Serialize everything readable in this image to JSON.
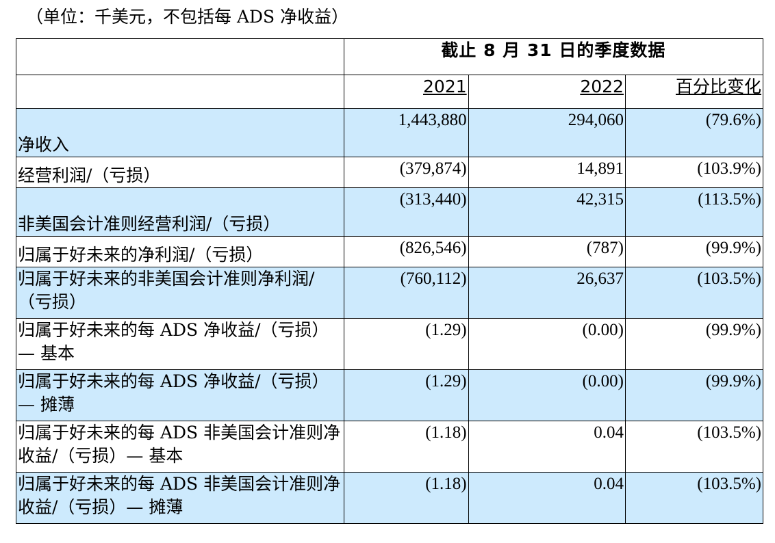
{
  "unit_note": "（单位：千美元，不包括每 ADS 净收益）",
  "header": {
    "period_title": "截止 8 月 31 日的季度数据",
    "col_2021": "2021",
    "col_2022": "2022",
    "col_pct": "百分比变化"
  },
  "rows": [
    {
      "label": "净收入",
      "v2021": "1,443,880",
      "v2022": "294,060",
      "pct": "(79.6%)"
    },
    {
      "label": "经营利润/（亏损）",
      "v2021": "(379,874)",
      "v2022": "14,891",
      "pct": "(103.9%)"
    },
    {
      "label": "非美国会计准则经营利润/（亏损）",
      "v2021": "(313,440)",
      "v2022": "42,315",
      "pct": "(113.5%)"
    },
    {
      "label": "归属于好未来的净利润/（亏损）",
      "v2021": "(826,546)",
      "v2022": "(787)",
      "pct": "(99.9%)"
    },
    {
      "label": "归属于好未来的非美国会计准则净利润/（亏损）",
      "v2021": "(760,112)",
      "v2022": "26,637",
      "pct": "(103.5%)"
    },
    {
      "label": "归属于好未来的每 ADS 净收益/（亏损）— 基本",
      "v2021": "(1.29)",
      "v2022": "(0.00)",
      "pct": "(99.9%)"
    },
    {
      "label": "归属于好未来的每 ADS 净收益/（亏损）— 摊薄",
      "v2021": "(1.29)",
      "v2022": "(0.00)",
      "pct": "(99.9%)"
    },
    {
      "label": "归属于好未来的每 ADS 非美国会计准则净收益/（亏损）— 基本",
      "v2021": "(1.18)",
      "v2022": "0.04",
      "pct": "(103.5%)"
    },
    {
      "label": "归属于好未来的每 ADS 非美国会计准则净收益/（亏损）— 摊薄",
      "v2021": "(1.18)",
      "v2022": "0.04",
      "pct": "(103.5%)"
    }
  ]
}
